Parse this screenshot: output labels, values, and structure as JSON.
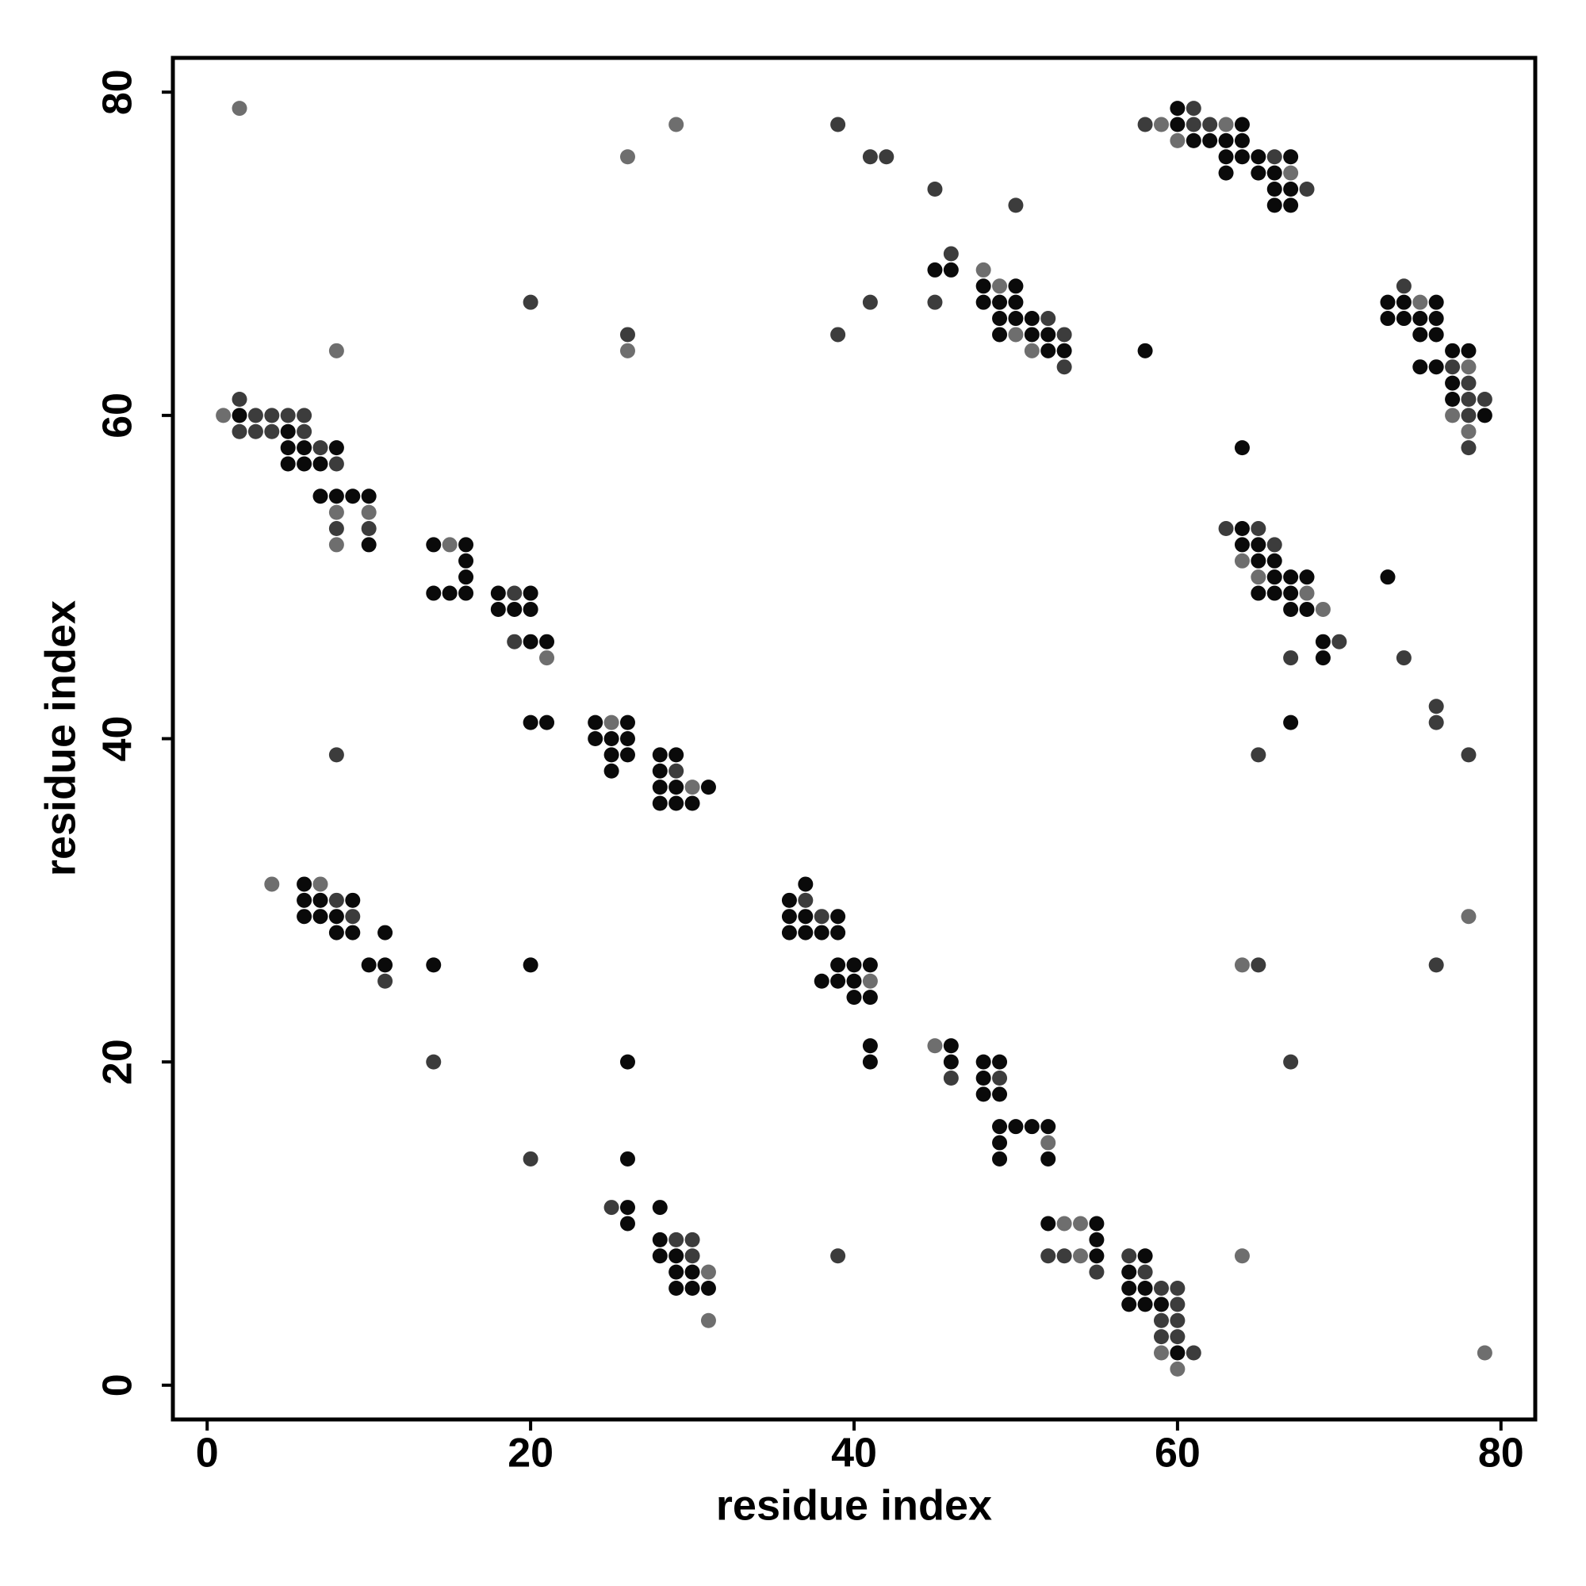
{
  "chart_data": {
    "type": "scatter",
    "xlabel": "residue index",
    "ylabel": "residue index",
    "xlim": [
      -2.12,
      82.12
    ],
    "ylim": [
      -2.12,
      82.12
    ],
    "xticks": [
      0,
      20,
      40,
      60,
      80
    ],
    "yticks": [
      0,
      20,
      40,
      60,
      80
    ],
    "grid": false,
    "series": [
      {
        "color": "#0a0a0a",
        "x": [
          60,
          60,
          64,
          61,
          62,
          63,
          64,
          63,
          64,
          65,
          67,
          63,
          65,
          66,
          66,
          67,
          66,
          67,
          45,
          46,
          48,
          50,
          48,
          49,
          50,
          49,
          50,
          51,
          49,
          51,
          52,
          52,
          53,
          58,
          73,
          74,
          76,
          73,
          74,
          75,
          76,
          75,
          76,
          77,
          78,
          75,
          76,
          77,
          77,
          79,
          2,
          5,
          5,
          6,
          8,
          5,
          6,
          7,
          7,
          8,
          9,
          10,
          10,
          64,
          14,
          16,
          16,
          16,
          14,
          15,
          16,
          18,
          20,
          18,
          19,
          20,
          20,
          21,
          64,
          64,
          65,
          65,
          66,
          66,
          67,
          68,
          73,
          65,
          66,
          67,
          67,
          68,
          69,
          69,
          67,
          20,
          21,
          24,
          26,
          24,
          25,
          26,
          25,
          26,
          25,
          28,
          29,
          28,
          28,
          29,
          31,
          28,
          29,
          30,
          6,
          6,
          7,
          9,
          6,
          7,
          8,
          8,
          9,
          11,
          10,
          11,
          14,
          20,
          37,
          36,
          36,
          37,
          39,
          36,
          37,
          38,
          39,
          39,
          40,
          41,
          38,
          39,
          40,
          40,
          41,
          41,
          41,
          46,
          46,
          48,
          49,
          48,
          48,
          49,
          49,
          50,
          51,
          52,
          49,
          49,
          52,
          26,
          26,
          26,
          28,
          26,
          28,
          28,
          29,
          29,
          30,
          29,
          30,
          31,
          52,
          55,
          55,
          55,
          58,
          57,
          57,
          58,
          57,
          58,
          59,
          60
        ],
        "values": [
          79,
          78,
          78,
          77,
          77,
          77,
          77,
          76,
          76,
          76,
          76,
          75,
          75,
          75,
          74,
          74,
          73,
          73,
          69,
          69,
          68,
          68,
          67,
          67,
          67,
          66,
          66,
          66,
          65,
          65,
          65,
          64,
          64,
          64,
          67,
          67,
          67,
          66,
          66,
          66,
          66,
          65,
          65,
          64,
          64,
          63,
          63,
          62,
          61,
          60,
          60,
          59,
          58,
          58,
          58,
          57,
          57,
          57,
          55,
          55,
          55,
          55,
          52,
          58,
          52,
          52,
          51,
          50,
          49,
          49,
          49,
          49,
          49,
          48,
          48,
          48,
          46,
          46,
          53,
          52,
          52,
          51,
          51,
          50,
          50,
          50,
          50,
          49,
          49,
          49,
          48,
          48,
          46,
          45,
          41,
          41,
          41,
          41,
          41,
          40,
          40,
          40,
          39,
          39,
          38,
          39,
          39,
          38,
          37,
          37,
          37,
          36,
          36,
          36,
          31,
          30,
          30,
          30,
          29,
          29,
          29,
          28,
          28,
          28,
          26,
          26,
          26,
          26,
          31,
          30,
          29,
          29,
          29,
          28,
          28,
          28,
          28,
          26,
          26,
          26,
          25,
          25,
          25,
          24,
          24,
          21,
          20,
          21,
          20,
          20,
          20,
          19,
          18,
          18,
          16,
          16,
          16,
          16,
          15,
          14,
          14,
          20,
          14,
          11,
          11,
          10,
          9,
          8,
          8,
          7,
          7,
          6,
          6,
          6,
          10,
          10,
          9,
          8,
          8,
          7,
          6,
          6,
          5,
          5,
          5,
          2
        ]
      },
      {
        "color": "#3c3c3c",
        "x": [
          61,
          58,
          61,
          62,
          66,
          68,
          39,
          41,
          42,
          45,
          50,
          46,
          45,
          41,
          20,
          52,
          53,
          26,
          39,
          53,
          74,
          77,
          78,
          78,
          79,
          78,
          78,
          2,
          3,
          4,
          5,
          6,
          2,
          3,
          4,
          6,
          7,
          8,
          8,
          10,
          19,
          19,
          63,
          65,
          66,
          70,
          67,
          74,
          76,
          76,
          65,
          78,
          8,
          29,
          8,
          9,
          11,
          37,
          38,
          65,
          76,
          46,
          49,
          14,
          67,
          20,
          25,
          29,
          30,
          30,
          39,
          52,
          53,
          55,
          57,
          58,
          59,
          60,
          60,
          59,
          60,
          59,
          60,
          61
        ],
        "values": [
          79,
          78,
          78,
          78,
          76,
          74,
          78,
          76,
          76,
          74,
          73,
          70,
          67,
          67,
          67,
          66,
          65,
          65,
          65,
          63,
          68,
          63,
          62,
          61,
          61,
          60,
          58,
          61,
          60,
          60,
          60,
          60,
          59,
          59,
          59,
          59,
          58,
          57,
          53,
          53,
          49,
          46,
          53,
          53,
          52,
          46,
          45,
          45,
          42,
          41,
          39,
          39,
          39,
          38,
          30,
          29,
          25,
          30,
          29,
          26,
          26,
          19,
          19,
          20,
          20,
          14,
          11,
          9,
          9,
          8,
          8,
          8,
          8,
          7,
          8,
          7,
          6,
          6,
          5,
          4,
          4,
          3,
          3,
          2
        ]
      },
      {
        "color": "#6e6e6e",
        "x": [
          2,
          29,
          26,
          59,
          63,
          60,
          67,
          48,
          49,
          50,
          51,
          26,
          8,
          75,
          78,
          77,
          78,
          1,
          8,
          10,
          8,
          15,
          21,
          64,
          65,
          68,
          69,
          25,
          30,
          4,
          7,
          41,
          64,
          78,
          45,
          52,
          31,
          31,
          64,
          53,
          54,
          54,
          59,
          60,
          79
        ],
        "values": [
          79,
          78,
          76,
          78,
          78,
          77,
          75,
          69,
          68,
          65,
          64,
          64,
          64,
          67,
          63,
          60,
          59,
          60,
          54,
          54,
          52,
          52,
          45,
          51,
          50,
          49,
          48,
          41,
          37,
          31,
          31,
          25,
          26,
          29,
          21,
          15,
          7,
          4,
          8,
          10,
          10,
          8,
          2,
          1,
          2
        ]
      }
    ]
  }
}
